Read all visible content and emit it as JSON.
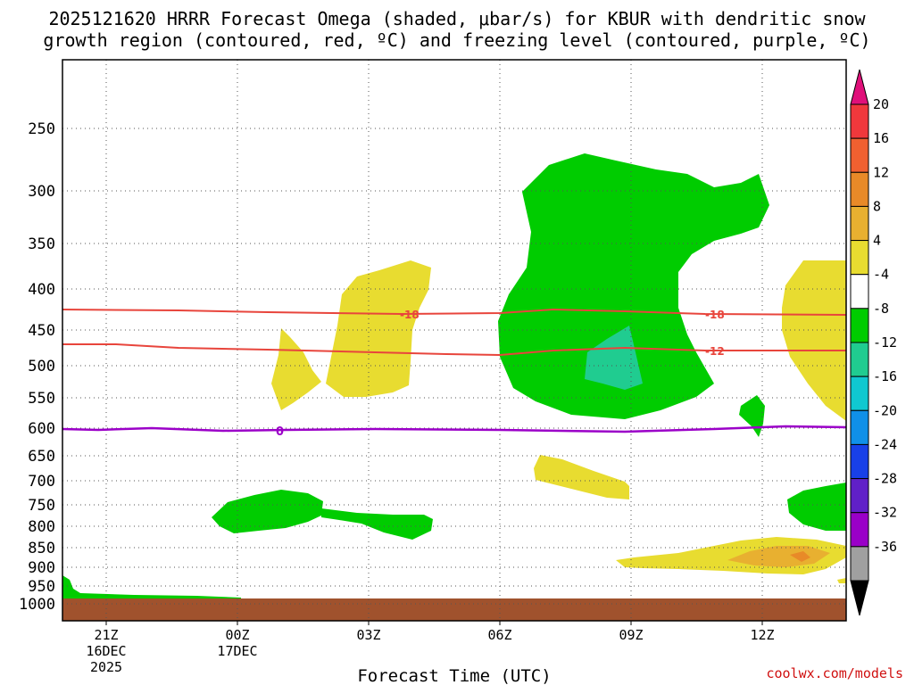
{
  "chart_data": {
    "type": "heatmap",
    "title_line1": "2025121620 HRRR Forecast Omega (shaded, μbar/s) for KBUR with dendritic snow",
    "title_line2": "growth region (contoured, red, ºC) and freezing level (contoured, purple, ºC)",
    "xlabel": "Forecast Time (UTC)",
    "credit": "coolwx.com/models",
    "y_ticks": [
      "250",
      "300",
      "350",
      "400",
      "450",
      "500",
      "550",
      "600",
      "650",
      "700",
      "750",
      "800",
      "850",
      "900",
      "950",
      "1000"
    ],
    "x_ticks": [
      {
        "label": "21Z",
        "sub1": "16DEC",
        "sub2": "2025"
      },
      {
        "label": "00Z",
        "sub1": "17DEC",
        "sub2": ""
      },
      {
        "label": "03Z",
        "sub1": "",
        "sub2": ""
      },
      {
        "label": "06Z",
        "sub1": "",
        "sub2": ""
      },
      {
        "label": "09Z",
        "sub1": "",
        "sub2": ""
      },
      {
        "label": "12Z",
        "sub1": "",
        "sub2": ""
      }
    ],
    "colorbar_labels": [
      "20",
      "16",
      "12",
      "8",
      "4",
      "-4",
      "-8",
      "-12",
      "-16",
      "-20",
      "-24",
      "-28",
      "-32",
      "-36"
    ],
    "colorbar_colors": [
      "#f0383c",
      "#f06030",
      "#e88a28",
      "#e8b030",
      "#e8dc30",
      "#ffffff",
      "#00cc00",
      "#20cc90",
      "#10c8d0",
      "#1090e8",
      "#1840e8",
      "#6020c8",
      "#9a00c8",
      "#a0a0a0"
    ],
    "contours": [
      {
        "name": "-18",
        "color": "#e8453c"
      },
      {
        "name": "-12",
        "color": "#e8453c"
      },
      {
        "name": "0",
        "color": "#9b00c8"
      }
    ],
    "ground_color": "#a0522d"
  }
}
